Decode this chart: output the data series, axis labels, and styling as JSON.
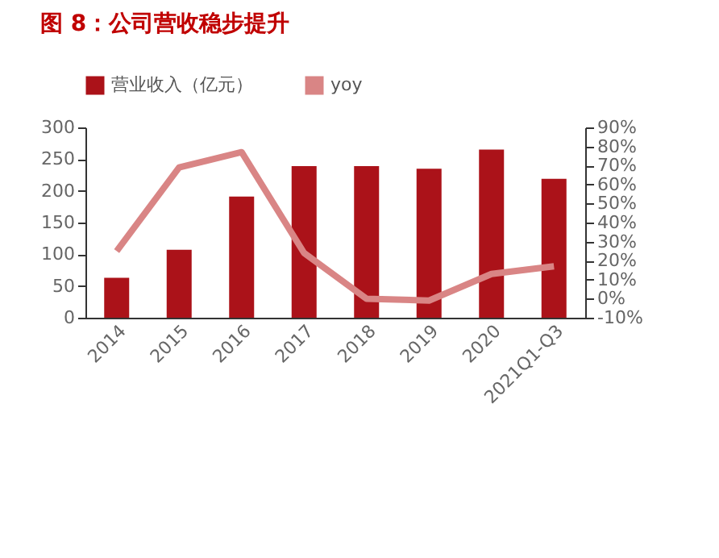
{
  "chart_data": {
    "type": "bar",
    "title": "图 8：公司营收稳步提升",
    "categories": [
      "2014",
      "2015",
      "2016",
      "2017",
      "2018",
      "2019",
      "2020",
      "2021Q1-Q3"
    ],
    "series": [
      {
        "name": "营业收入（亿元）",
        "color": "#ab1219",
        "values": [
          63,
          107,
          191,
          239,
          239,
          235,
          265,
          219
        ]
      },
      {
        "name": "yoy",
        "type": "line",
        "axis": "y2",
        "color": "#d98585",
        "values": [
          25,
          69,
          77,
          24,
          0,
          -1,
          13,
          17
        ]
      }
    ],
    "ylim": [
      0,
      300
    ],
    "yticks": [
      0,
      50,
      100,
      150,
      200,
      250,
      300
    ],
    "y2lim": [
      -10,
      90
    ],
    "y2ticks": [
      {
        "value": -10,
        "label": "-10%"
      },
      {
        "value": 0,
        "label": "0%"
      },
      {
        "value": 10,
        "label": "10%"
      },
      {
        "value": 20,
        "label": "20%"
      },
      {
        "value": 30,
        "label": "30%"
      },
      {
        "value": 40,
        "label": "40%"
      },
      {
        "value": 50,
        "label": "50%"
      },
      {
        "value": 60,
        "label": "60%"
      },
      {
        "value": 70,
        "label": "70%"
      },
      {
        "value": 80,
        "label": "80%"
      },
      {
        "value": 90,
        "label": "90%"
      }
    ],
    "legend": "top"
  }
}
